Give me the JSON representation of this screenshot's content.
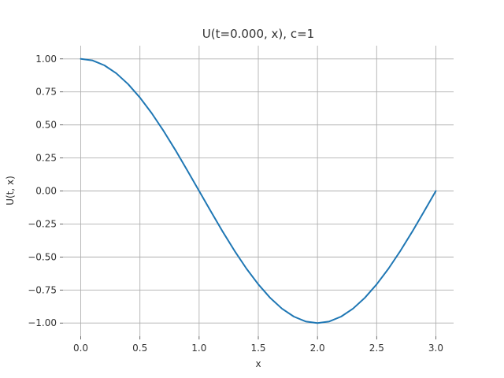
{
  "chart_data": {
    "type": "line",
    "title": "U(t=0.000, x), c=1",
    "xlabel": "x",
    "ylabel": "U(t, x)",
    "xlim": [
      -0.15,
      3.15
    ],
    "ylim": [
      -1.1,
      1.1
    ],
    "xticks": [
      0.0,
      0.5,
      1.0,
      1.5,
      2.0,
      2.5,
      3.0
    ],
    "xtick_labels": [
      "0.0",
      "0.5",
      "1.0",
      "1.5",
      "2.0",
      "2.5",
      "3.0"
    ],
    "yticks": [
      1.0,
      0.75,
      0.5,
      0.25,
      0.0,
      -0.25,
      -0.5,
      -0.75,
      -1.0
    ],
    "ytick_labels": [
      "1.00",
      "0.75",
      "0.50",
      "0.25",
      "0.00",
      "−0.25",
      "−0.50",
      "−0.75",
      "−1.00"
    ],
    "grid": true,
    "series": [
      {
        "color": "#1f77b4",
        "x": [
          0.0,
          0.1,
          0.2,
          0.3,
          0.4,
          0.5,
          0.6,
          0.7,
          0.8,
          0.9,
          1.0,
          1.1,
          1.2,
          1.3,
          1.4,
          1.5,
          1.6,
          1.7,
          1.8,
          1.9,
          2.0,
          2.1,
          2.2,
          2.3,
          2.4,
          2.5,
          2.6,
          2.7,
          2.8,
          2.9,
          3.0
        ],
        "y": [
          1.0,
          0.988,
          0.951,
          0.891,
          0.809,
          0.707,
          0.588,
          0.454,
          0.309,
          0.156,
          0.0,
          -0.156,
          -0.309,
          -0.454,
          -0.588,
          -0.707,
          -0.809,
          -0.891,
          -0.951,
          -0.988,
          -1.0,
          -0.988,
          -0.951,
          -0.891,
          -0.809,
          -0.707,
          -0.588,
          -0.454,
          -0.309,
          -0.156,
          0.0
        ]
      }
    ]
  }
}
